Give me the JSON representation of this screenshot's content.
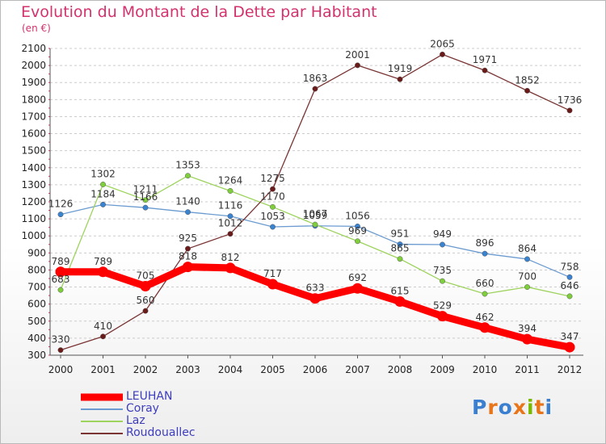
{
  "header": {
    "title": "Evolution du Montant de la Dette par Habitant",
    "unit": "(en €)"
  },
  "logo": {
    "text": "Proxiti",
    "letter_colors": [
      "#3a7fd0",
      "#e8751a",
      "#3a7fd0",
      "#e8751a",
      "#7ab800",
      "#e8751a",
      "#3a7fd0"
    ]
  },
  "colors": {
    "title": "#d2326e",
    "legend_text": "#3d3dbd",
    "grid": "#cccccc"
  },
  "chart_data": {
    "type": "line",
    "title": "Evolution du Montant de la Dette par Habitant",
    "ylabel": "(en €)",
    "xlabel": "",
    "x": [
      "2000",
      "2001",
      "2002",
      "2003",
      "2004",
      "2005",
      "2006",
      "2007",
      "2008",
      "2009",
      "2010",
      "2011",
      "2012"
    ],
    "ylim": [
      300,
      2100
    ],
    "yticks": [
      300,
      400,
      500,
      600,
      700,
      800,
      900,
      1000,
      1100,
      1200,
      1300,
      1400,
      1500,
      1600,
      1700,
      1800,
      1900,
      2000,
      2100
    ],
    "grid": true,
    "legend_position": "bottom-left",
    "series": [
      {
        "name": "LEUHAN",
        "color": "#ff0000",
        "marker_color": "#ff0000",
        "emphasis": true,
        "values": [
          789,
          789,
          705,
          818,
          812,
          717,
          633,
          692,
          615,
          529,
          462,
          394,
          347
        ]
      },
      {
        "name": "Coray",
        "color": "#6b9bd0",
        "marker_color": "#3a83d0",
        "emphasis": false,
        "values": [
          1126,
          1184,
          1166,
          1140,
          1116,
          1053,
          1059,
          1056,
          951,
          949,
          896,
          864,
          758
        ]
      },
      {
        "name": "Laz",
        "color": "#9ed35e",
        "marker_color": "#7fcf3c",
        "emphasis": false,
        "values": [
          683,
          1302,
          1211,
          1353,
          1264,
          1170,
          1067,
          969,
          865,
          735,
          660,
          700,
          646
        ]
      },
      {
        "name": "Roudouallec",
        "color": "#7a3434",
        "marker_color": "#6b1a1a",
        "emphasis": false,
        "values": [
          330,
          410,
          560,
          925,
          1012,
          1275,
          1863,
          2001,
          1919,
          2065,
          1971,
          1852,
          1736
        ]
      }
    ]
  }
}
